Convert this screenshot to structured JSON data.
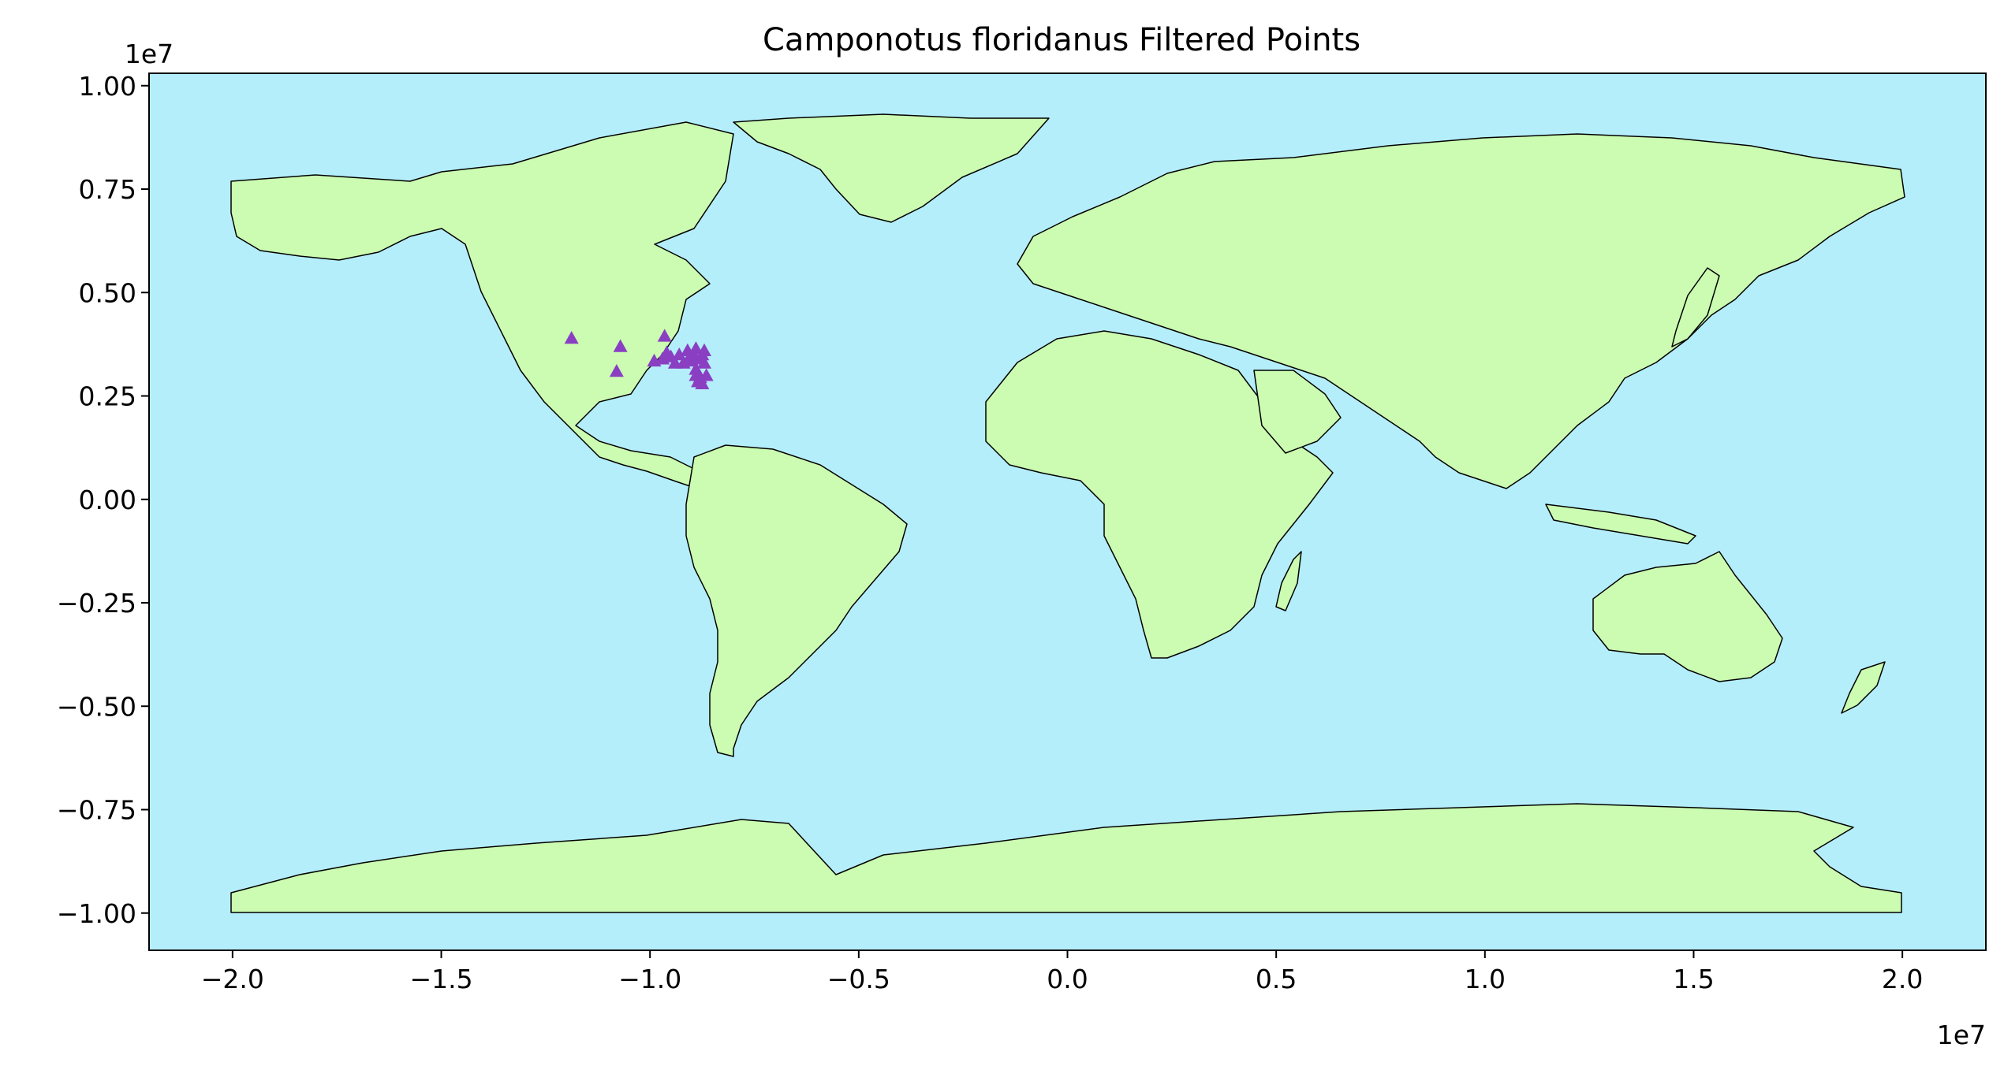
{
  "title": "Camponotus floridanus Filtered Points",
  "colors": {
    "ocean": "#b5eefb",
    "land": "#cbfcb1",
    "outline": "#000000",
    "points": "#8a3fc2"
  },
  "x_axis": {
    "range": [
      -22000000,
      22000000
    ],
    "offset_label": "1e7",
    "ticks": [
      {
        "value": -20000000,
        "label": "−2.0"
      },
      {
        "value": -15000000,
        "label": "−1.5"
      },
      {
        "value": -10000000,
        "label": "−1.0"
      },
      {
        "value": -5000000,
        "label": "−0.5"
      },
      {
        "value": 0,
        "label": "0.0"
      },
      {
        "value": 5000000,
        "label": "0.5"
      },
      {
        "value": 10000000,
        "label": "1.0"
      },
      {
        "value": 15000000,
        "label": "1.5"
      },
      {
        "value": 20000000,
        "label": "2.0"
      }
    ]
  },
  "y_axis": {
    "range": [
      -10900000,
      10300000
    ],
    "offset_label": "1e7",
    "ticks": [
      {
        "value": 10000000,
        "label": "1.00"
      },
      {
        "value": 7500000,
        "label": "0.75"
      },
      {
        "value": 5000000,
        "label": "0.50"
      },
      {
        "value": 2500000,
        "label": "0.25"
      },
      {
        "value": 0,
        "label": "0.00"
      },
      {
        "value": -2500000,
        "label": "−0.25"
      },
      {
        "value": -5000000,
        "label": "−0.50"
      },
      {
        "value": -7500000,
        "label": "−0.75"
      },
      {
        "value": -10000000,
        "label": "−1.00"
      }
    ]
  },
  "chart_data": {
    "type": "scatter",
    "title": "Camponotus floridanus Filtered Points",
    "xlabel": "",
    "ylabel": "",
    "xlim": [
      -22000000,
      22000000
    ],
    "ylim": [
      -10900000,
      10300000
    ],
    "grid": false,
    "marker": "triangle",
    "series": [
      {
        "points": [
          [
            -11880000,
            3900000
          ],
          [
            -10710000,
            3700000
          ],
          [
            -10800000,
            3100000
          ],
          [
            -9650000,
            3950000
          ],
          [
            -9900000,
            3350000
          ],
          [
            -9700000,
            3400000
          ],
          [
            -9500000,
            3450000
          ],
          [
            -9300000,
            3500000
          ],
          [
            -9100000,
            3600000
          ],
          [
            -8900000,
            3650000
          ],
          [
            -8700000,
            3600000
          ],
          [
            -9200000,
            3300000
          ],
          [
            -9000000,
            3350000
          ],
          [
            -8800000,
            3400000
          ],
          [
            -8900000,
            3150000
          ],
          [
            -8800000,
            2950000
          ],
          [
            -8750000,
            2800000
          ],
          [
            -8900000,
            3000000
          ],
          [
            -9400000,
            3300000
          ],
          [
            -8950000,
            3500000
          ],
          [
            -9600000,
            3550000
          ],
          [
            -8700000,
            3300000
          ],
          [
            -8650000,
            3000000
          ],
          [
            -8850000,
            2850000
          ],
          [
            -9050000,
            3450000
          ],
          [
            -8750000,
            3500000
          ]
        ]
      }
    ]
  }
}
